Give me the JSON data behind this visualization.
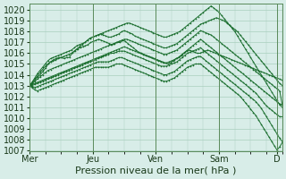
{
  "bg_color": "#d8ede8",
  "grid_color": "#aacfbe",
  "line_color": "#1a6e2e",
  "marker_color": "#1a6e2e",
  "xlabel": "Pression niveau de la mer( hPa )",
  "xlabel_fontsize": 8,
  "tick_fontsize": 7,
  "ylim": [
    1007,
    1020.5
  ],
  "yticks": [
    1007,
    1008,
    1009,
    1010,
    1011,
    1012,
    1013,
    1014,
    1015,
    1016,
    1017,
    1018,
    1019,
    1020
  ],
  "day_labels": [
    "Mer",
    "Jeu",
    "Ven",
    "Sam",
    "D"
  ],
  "day_positions": [
    0,
    48,
    96,
    144,
    188
  ],
  "xlim": [
    0,
    192
  ],
  "series": [
    [
      1013.0,
      1013.2,
      1013.5,
      1013.8,
      1014.0,
      1014.3,
      1014.6,
      1015.0,
      1015.2,
      1015.4,
      1015.5,
      1015.6,
      1015.6,
      1015.5,
      1015.6,
      1015.6,
      1016.0,
      1016.2,
      1016.4,
      1016.5,
      1016.6,
      1016.7,
      1016.8,
      1017.0,
      1017.1,
      1017.2,
      1017.3,
      1017.2,
      1017.1,
      1017.0,
      1016.9,
      1016.8,
      1016.9,
      1017.0,
      1017.0,
      1017.2,
      1017.1,
      1016.9,
      1016.7,
      1016.5,
      1016.3,
      1016.1,
      1016.0,
      1015.9,
      1015.8,
      1015.7,
      1015.6,
      1015.5,
      1015.4,
      1015.3,
      1015.2,
      1015.1,
      1015.0,
      1015.1,
      1015.3,
      1015.5,
      1015.6,
      1015.8,
      1016.0,
      1016.2,
      1016.3,
      1016.2,
      1016.1,
      1016.0,
      1016.0,
      1016.1,
      1016.2,
      1016.3,
      1016.2,
      1016.1,
      1016.0,
      1015.9,
      1015.8,
      1015.7,
      1015.6,
      1015.5,
      1015.4,
      1015.3,
      1015.2,
      1015.1,
      1015.0,
      1014.9,
      1014.8,
      1014.7,
      1014.6,
      1014.5,
      1014.4,
      1014.3,
      1014.2,
      1014.1,
      1014.0,
      1013.9,
      1013.8,
      1013.7,
      1013.6,
      1013.5
    ],
    [
      1013.0,
      1013.3,
      1013.7,
      1014.1,
      1014.4,
      1014.7,
      1015.0,
      1015.3,
      1015.5,
      1015.6,
      1015.7,
      1015.8,
      1015.9,
      1016.0,
      1016.1,
      1016.2,
      1016.3,
      1016.5,
      1016.7,
      1016.8,
      1016.9,
      1017.0,
      1017.2,
      1017.4,
      1017.5,
      1017.6,
      1017.7,
      1017.8,
      1017.7,
      1017.6,
      1017.5,
      1017.5,
      1017.6,
      1017.7,
      1017.8,
      1018.0,
      1018.1,
      1018.0,
      1017.9,
      1017.8,
      1017.6,
      1017.5,
      1017.4,
      1017.3,
      1017.2,
      1017.1,
      1017.0,
      1016.9,
      1016.8,
      1016.7,
      1016.6,
      1016.5,
      1016.5,
      1016.6,
      1016.7,
      1016.8,
      1016.9,
      1017.1,
      1017.3,
      1017.5,
      1017.7,
      1017.9,
      1018.1,
      1018.3,
      1018.5,
      1018.7,
      1018.8,
      1018.9,
      1019.0,
      1019.1,
      1019.2,
      1019.3,
      1019.2,
      1019.1,
      1019.0,
      1018.8,
      1018.6,
      1018.4,
      1018.2,
      1018.0,
      1017.7,
      1017.4,
      1017.1,
      1016.8,
      1016.5,
      1016.2,
      1015.9,
      1015.6,
      1015.3,
      1015.0,
      1014.7,
      1014.4,
      1014.1,
      1013.8,
      1013.5,
      1013.2,
      1013.0
    ],
    [
      1013.0,
      1013.3,
      1013.6,
      1013.9,
      1014.2,
      1014.5,
      1014.8,
      1015.0,
      1015.2,
      1015.3,
      1015.4,
      1015.5,
      1015.6,
      1015.7,
      1015.8,
      1015.9,
      1016.0,
      1016.2,
      1016.4,
      1016.6,
      1016.8,
      1017.0,
      1017.2,
      1017.4,
      1017.5,
      1017.6,
      1017.7,
      1017.8,
      1017.9,
      1018.0,
      1018.1,
      1018.2,
      1018.3,
      1018.4,
      1018.5,
      1018.6,
      1018.7,
      1018.8,
      1018.8,
      1018.7,
      1018.6,
      1018.5,
      1018.4,
      1018.3,
      1018.2,
      1018.1,
      1018.0,
      1017.9,
      1017.8,
      1017.7,
      1017.6,
      1017.5,
      1017.5,
      1017.6,
      1017.7,
      1017.8,
      1017.9,
      1018.0,
      1018.2,
      1018.4,
      1018.6,
      1018.8,
      1019.0,
      1019.2,
      1019.4,
      1019.6,
      1019.8,
      1020.0,
      1020.2,
      1020.4,
      1020.2,
      1020.0,
      1019.8,
      1019.5,
      1019.2,
      1018.9,
      1018.6,
      1018.3,
      1018.0,
      1017.6,
      1017.2,
      1016.8,
      1016.4,
      1016.0,
      1015.6,
      1015.2,
      1014.8,
      1014.4,
      1014.0,
      1013.6,
      1013.2,
      1012.8,
      1012.4,
      1012.0,
      1011.6,
      1011.2,
      1011.0
    ],
    [
      1013.0,
      1013.2,
      1013.4,
      1013.6,
      1013.8,
      1014.0,
      1014.2,
      1014.4,
      1014.5,
      1014.6,
      1014.7,
      1014.8,
      1014.9,
      1015.0,
      1015.1,
      1015.2,
      1015.3,
      1015.4,
      1015.5,
      1015.6,
      1015.7,
      1015.8,
      1015.9,
      1016.0,
      1016.1,
      1016.2,
      1016.3,
      1016.4,
      1016.5,
      1016.6,
      1016.7,
      1016.8,
      1016.9,
      1017.0,
      1017.1,
      1017.2,
      1017.3,
      1017.3,
      1017.2,
      1017.1,
      1017.0,
      1016.9,
      1016.8,
      1016.7,
      1016.6,
      1016.5,
      1016.4,
      1016.3,
      1016.2,
      1016.1,
      1016.0,
      1015.9,
      1015.9,
      1016.0,
      1016.1,
      1016.2,
      1016.3,
      1016.5,
      1016.7,
      1016.9,
      1017.1,
      1017.3,
      1017.5,
      1017.7,
      1017.9,
      1018.1,
      1018.0,
      1017.9,
      1017.8,
      1017.7,
      1017.5,
      1017.3,
      1017.1,
      1016.9,
      1016.7,
      1016.5,
      1016.3,
      1016.1,
      1015.9,
      1015.7,
      1015.5,
      1015.3,
      1015.1,
      1014.9,
      1014.7,
      1014.5,
      1014.3,
      1014.1,
      1013.9,
      1013.7,
      1013.5,
      1013.3,
      1013.1,
      1012.9,
      1012.7,
      1012.5,
      1011.2
    ],
    [
      1013.0,
      1013.1,
      1013.2,
      1013.3,
      1013.4,
      1013.5,
      1013.6,
      1013.7,
      1013.8,
      1013.9,
      1014.0,
      1014.1,
      1014.2,
      1014.3,
      1014.4,
      1014.5,
      1014.6,
      1014.7,
      1014.8,
      1014.9,
      1015.0,
      1015.1,
      1015.2,
      1015.3,
      1015.4,
      1015.5,
      1015.6,
      1015.7,
      1015.8,
      1015.9,
      1016.0,
      1016.1,
      1016.2,
      1016.3,
      1016.4,
      1016.5,
      1016.6,
      1016.5,
      1016.4,
      1016.3,
      1016.2,
      1016.1,
      1016.0,
      1015.9,
      1015.8,
      1015.7,
      1015.6,
      1015.5,
      1015.4,
      1015.3,
      1015.2,
      1015.1,
      1015.1,
      1015.2,
      1015.3,
      1015.4,
      1015.5,
      1015.7,
      1015.9,
      1016.1,
      1016.3,
      1016.5,
      1016.7,
      1016.9,
      1017.1,
      1017.3,
      1017.1,
      1016.9,
      1016.7,
      1016.5,
      1016.3,
      1016.1,
      1015.9,
      1015.7,
      1015.5,
      1015.3,
      1015.1,
      1014.9,
      1014.7,
      1014.5,
      1014.3,
      1014.1,
      1013.9,
      1013.7,
      1013.5,
      1013.3,
      1013.1,
      1012.9,
      1012.7,
      1012.5,
      1012.3,
      1012.1,
      1011.9,
      1011.7,
      1011.5,
      1011.3,
      1011.2
    ],
    [
      1013.0,
      1013.0,
      1013.1,
      1013.2,
      1013.3,
      1013.4,
      1013.5,
      1013.6,
      1013.7,
      1013.8,
      1013.9,
      1014.0,
      1014.1,
      1014.2,
      1014.3,
      1014.4,
      1014.5,
      1014.6,
      1014.7,
      1014.8,
      1014.9,
      1015.0,
      1015.1,
      1015.2,
      1015.3,
      1015.4,
      1015.5,
      1015.6,
      1015.7,
      1015.8,
      1015.9,
      1016.0,
      1016.0,
      1016.1,
      1016.2,
      1016.2,
      1016.2,
      1016.1,
      1016.0,
      1015.9,
      1015.8,
      1015.7,
      1015.6,
      1015.5,
      1015.4,
      1015.3,
      1015.2,
      1015.1,
      1015.0,
      1014.9,
      1014.8,
      1014.8,
      1014.8,
      1014.9,
      1015.0,
      1015.1,
      1015.2,
      1015.4,
      1015.6,
      1015.8,
      1016.0,
      1016.1,
      1016.2,
      1016.3,
      1016.4,
      1016.5,
      1016.3,
      1016.1,
      1015.9,
      1015.7,
      1015.5,
      1015.3,
      1015.1,
      1014.9,
      1014.7,
      1014.5,
      1014.3,
      1014.1,
      1013.9,
      1013.7,
      1013.5,
      1013.3,
      1013.1,
      1012.9,
      1012.7,
      1012.5,
      1012.3,
      1012.0,
      1011.7,
      1011.4,
      1011.1,
      1010.9,
      1010.7,
      1010.5,
      1010.3,
      1010.1,
      1010.1
    ],
    [
      1013.0,
      1012.9,
      1012.8,
      1012.9,
      1013.0,
      1013.1,
      1013.2,
      1013.3,
      1013.4,
      1013.5,
      1013.6,
      1013.7,
      1013.8,
      1013.9,
      1014.0,
      1014.1,
      1014.2,
      1014.3,
      1014.4,
      1014.5,
      1014.6,
      1014.7,
      1014.8,
      1014.9,
      1015.0,
      1015.1,
      1015.2,
      1015.2,
      1015.2,
      1015.2,
      1015.2,
      1015.3,
      1015.4,
      1015.5,
      1015.6,
      1015.6,
      1015.5,
      1015.4,
      1015.3,
      1015.2,
      1015.1,
      1015.0,
      1014.9,
      1014.8,
      1014.7,
      1014.6,
      1014.5,
      1014.4,
      1014.3,
      1014.2,
      1014.1,
      1014.0,
      1014.0,
      1014.1,
      1014.2,
      1014.3,
      1014.5,
      1014.7,
      1014.9,
      1015.1,
      1015.3,
      1015.4,
      1015.5,
      1015.6,
      1015.7,
      1015.7,
      1015.5,
      1015.3,
      1015.1,
      1014.9,
      1014.7,
      1014.5,
      1014.3,
      1014.1,
      1013.9,
      1013.7,
      1013.5,
      1013.3,
      1013.1,
      1012.9,
      1012.7,
      1012.5,
      1012.3,
      1012.1,
      1011.9,
      1011.7,
      1011.5,
      1011.2,
      1010.9,
      1010.5,
      1010.1,
      1009.7,
      1009.3,
      1008.9,
      1008.5,
      1008.1,
      1007.8
    ],
    [
      1013.0,
      1012.8,
      1012.6,
      1012.5,
      1012.6,
      1012.7,
      1012.8,
      1012.9,
      1013.0,
      1013.1,
      1013.2,
      1013.3,
      1013.4,
      1013.5,
      1013.6,
      1013.7,
      1013.8,
      1013.9,
      1014.0,
      1014.1,
      1014.2,
      1014.3,
      1014.4,
      1014.5,
      1014.6,
      1014.7,
      1014.7,
      1014.7,
      1014.7,
      1014.7,
      1014.7,
      1014.8,
      1014.9,
      1015.0,
      1015.0,
      1015.0,
      1014.9,
      1014.8,
      1014.7,
      1014.6,
      1014.5,
      1014.4,
      1014.3,
      1014.2,
      1014.1,
      1014.0,
      1013.9,
      1013.8,
      1013.7,
      1013.6,
      1013.5,
      1013.4,
      1013.4,
      1013.5,
      1013.6,
      1013.7,
      1013.9,
      1014.1,
      1014.3,
      1014.5,
      1014.7,
      1014.8,
      1014.9,
      1015.0,
      1015.0,
      1015.0,
      1014.8,
      1014.6,
      1014.4,
      1014.2,
      1014.0,
      1013.8,
      1013.6,
      1013.4,
      1013.2,
      1013.0,
      1012.8,
      1012.6,
      1012.4,
      1012.2,
      1012.0,
      1011.7,
      1011.4,
      1011.1,
      1010.8,
      1010.5,
      1010.2,
      1009.8,
      1009.4,
      1009.0,
      1008.6,
      1008.2,
      1007.8,
      1007.4,
      1007.0,
      1007.3,
      1007.7
    ]
  ]
}
